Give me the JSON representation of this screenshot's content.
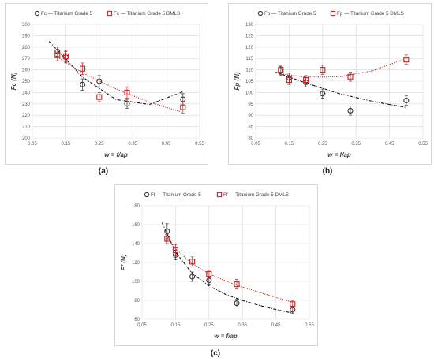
{
  "captions": [
    "(a)",
    "(b)",
    "(c)"
  ],
  "colors": {
    "grade5": "#333333",
    "dmls": "#c0282a",
    "grid": "#d9d9d9"
  },
  "chart_data": [
    {
      "type": "scatter",
      "panel": "a",
      "xlabel": "w = f/ap",
      "ylabel": "Fc (N)",
      "xlim": [
        0.05,
        0.55
      ],
      "ylim": [
        200,
        300
      ],
      "xticks": [
        0.05,
        0.15,
        0.25,
        0.35,
        0.45,
        0.55
      ],
      "xtick_labels": [
        "0.05",
        "0.15",
        "0.25",
        "0.35",
        "0.45",
        "0.55"
      ],
      "yticks": [
        200,
        210,
        220,
        230,
        240,
        250,
        260,
        270,
        280,
        290,
        300
      ],
      "ytick_labels": [
        "200",
        "210",
        "220",
        "230",
        "240",
        "250",
        "260",
        "270",
        "280",
        "290",
        "300"
      ],
      "legend_position": "top",
      "series": [
        {
          "name": "Fc — Titanium Grade 5",
          "marker": "circle",
          "trend": "dashdot",
          "x": [
            0.125,
            0.15,
            0.2,
            0.25,
            0.333,
            0.5
          ],
          "y": [
            276,
            271,
            247,
            250,
            230,
            234
          ],
          "err": [
            4,
            5,
            5,
            5,
            4,
            5
          ],
          "trend_x": [
            0.1,
            0.2,
            0.3,
            0.4,
            0.5
          ],
          "trend_y": [
            285,
            253.6,
            233.8,
            229.5,
            240.7
          ]
        },
        {
          "name": "Fc — Titanium Grade 5 DMLS",
          "marker": "square",
          "trend": "dotted",
          "x": [
            0.125,
            0.15,
            0.2,
            0.25,
            0.333,
            0.5
          ],
          "y": [
            273,
            272,
            261,
            236,
            240,
            227
          ],
          "err": [
            5,
            5,
            5,
            4,
            5,
            5
          ],
          "trend_x": [
            0.12,
            0.2,
            0.3,
            0.4,
            0.5
          ],
          "trend_y": [
            272,
            257.4,
            243.1,
            231.5,
            222.5
          ]
        }
      ]
    },
    {
      "type": "scatter",
      "panel": "b",
      "xlabel": "w = f/ap",
      "ylabel": "Fp (N)",
      "xlim": [
        0.05,
        0.55
      ],
      "ylim": [
        80,
        130
      ],
      "xticks": [
        0.05,
        0.15,
        0.25,
        0.35,
        0.45,
        0.55
      ],
      "xtick_labels": [
        "0.05",
        "0.15",
        "0.25",
        "0.35",
        "0.45",
        "0.55"
      ],
      "yticks": [
        80,
        85,
        90,
        95,
        100,
        105,
        110,
        115,
        120,
        125,
        130
      ],
      "ytick_labels": [
        "80",
        "85",
        "90",
        "95",
        "100",
        "105",
        "110",
        "115",
        "120",
        "125",
        "130"
      ],
      "legend_position": "top",
      "series": [
        {
          "name": "Fp — Titanium Grade 5",
          "marker": "circle",
          "trend": "dashdot",
          "x": [
            0.125,
            0.15,
            0.2,
            0.25,
            0.333,
            0.5
          ],
          "y": [
            109.5,
            106.5,
            104.5,
            99.5,
            92,
            96.5
          ],
          "err": [
            2,
            2,
            2,
            2,
            2,
            2
          ],
          "trend_x": [
            0.11,
            0.2,
            0.3,
            0.4,
            0.5
          ],
          "trend_y": [
            109,
            104.2,
            99.5,
            96.1,
            93.4
          ]
        },
        {
          "name": "Fp — Titanium Grade 5 DMLS",
          "marker": "square",
          "trend": "dotted",
          "x": [
            0.125,
            0.15,
            0.2,
            0.25,
            0.333,
            0.5
          ],
          "y": [
            110,
            105.5,
            105.5,
            110,
            107,
            114.5
          ],
          "err": [
            2,
            2,
            2,
            2,
            2,
            2
          ],
          "trend_x": [
            0.12,
            0.2,
            0.3,
            0.4,
            0.5
          ],
          "trend_y": [
            108.3,
            106.8,
            106.9,
            109.6,
            115
          ]
        }
      ]
    },
    {
      "type": "scatter",
      "panel": "c",
      "xlabel": "w = f/ap",
      "ylabel": "Ff (N)",
      "xlim": [
        0.05,
        0.55
      ],
      "ylim": [
        60,
        180
      ],
      "xticks": [
        0.05,
        0.15,
        0.25,
        0.35,
        0.45,
        0.55
      ],
      "xtick_labels": [
        "0.05",
        "0.15",
        "0.25",
        "0.35",
        "0.45",
        "0.55"
      ],
      "yticks": [
        60,
        80,
        100,
        120,
        140,
        160,
        180
      ],
      "ytick_labels": [
        "60",
        "80",
        "100",
        "120",
        "140",
        "160",
        "180"
      ],
      "legend_position": "top",
      "series": [
        {
          "name": "Ff — Titanium Grade 5",
          "marker": "circle",
          "trend": "dashdot",
          "x": [
            0.125,
            0.15,
            0.2,
            0.25,
            0.333,
            0.5
          ],
          "y": [
            153,
            128,
            105,
            101,
            77,
            70
          ],
          "err": [
            8,
            5,
            5,
            4,
            4,
            4
          ],
          "trend_x": [
            0.11,
            0.15,
            0.2,
            0.25,
            0.3,
            0.35,
            0.4,
            0.45,
            0.5
          ],
          "trend_y": [
            162,
            130.9,
            108.4,
            95.3,
            86.3,
            79.9,
            74.7,
            70.3,
            66.5
          ]
        },
        {
          "name": "Ff — Titanium Grade 5 DMLS",
          "marker": "square",
          "trend": "dotted",
          "x": [
            0.125,
            0.15,
            0.2,
            0.25,
            0.333,
            0.5
          ],
          "y": [
            145,
            133,
            121,
            108,
            97,
            76
          ],
          "err": [
            5,
            6,
            5,
            4,
            5,
            4
          ],
          "trend_x": [
            0.12,
            0.15,
            0.2,
            0.25,
            0.3,
            0.35,
            0.4,
            0.45,
            0.5
          ],
          "trend_y": [
            150,
            134.7,
            118.5,
            108.2,
            100.4,
            94,
            88.5,
            83.1,
            78
          ]
        }
      ]
    }
  ]
}
